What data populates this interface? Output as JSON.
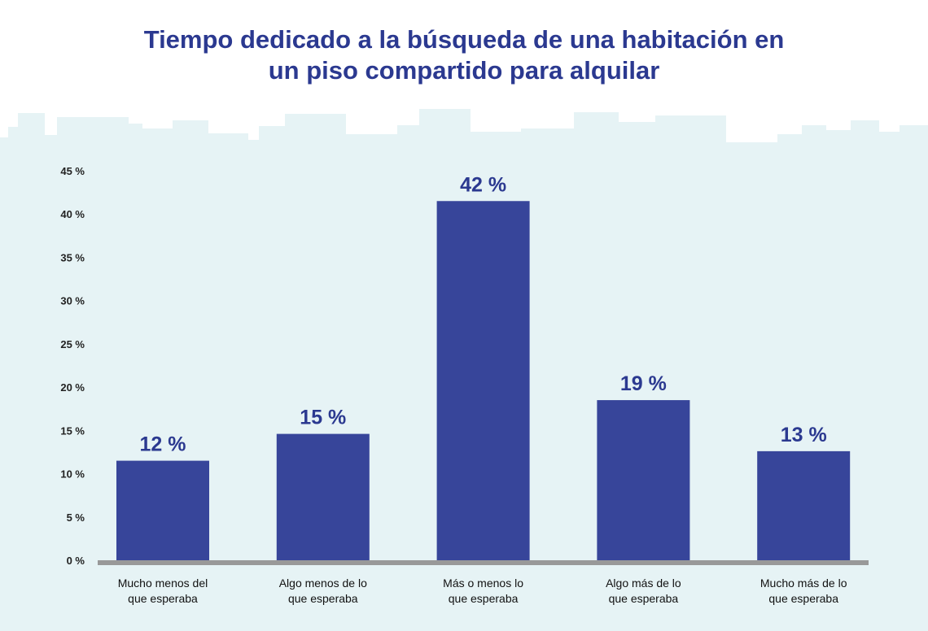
{
  "chart_data": {
    "type": "bar",
    "title_lines": [
      "Tiempo dedicado a la búsqueda de una habitación en",
      "un piso compartido para alquilar"
    ],
    "categories": [
      [
        "Mucho menos del",
        "que esperaba"
      ],
      [
        "Algo menos de lo",
        "que esperaba"
      ],
      [
        "Más o menos lo",
        "que esperaba"
      ],
      [
        "Algo más de lo",
        "que esperaba"
      ],
      [
        "Mucho más de lo",
        "que esperaba"
      ]
    ],
    "values": [
      11.5,
      14.6,
      41.5,
      18.5,
      12.6
    ],
    "data_labels": [
      "12 %",
      "15 %",
      "42 %",
      "19 %",
      "13 %"
    ],
    "yticks": [
      "0 %",
      "5 %",
      "10 %",
      "15 %",
      "20 %",
      "25 %",
      "30 %",
      "35 %",
      "40 %",
      "45 %"
    ],
    "ylim": [
      0,
      45
    ],
    "xlabel": "",
    "ylabel": "",
    "grid": false,
    "legend": "none",
    "colors": {
      "bar": "#37459a",
      "title": "#2b3990",
      "background": "#e6f3f5",
      "axis": "#999999"
    }
  }
}
